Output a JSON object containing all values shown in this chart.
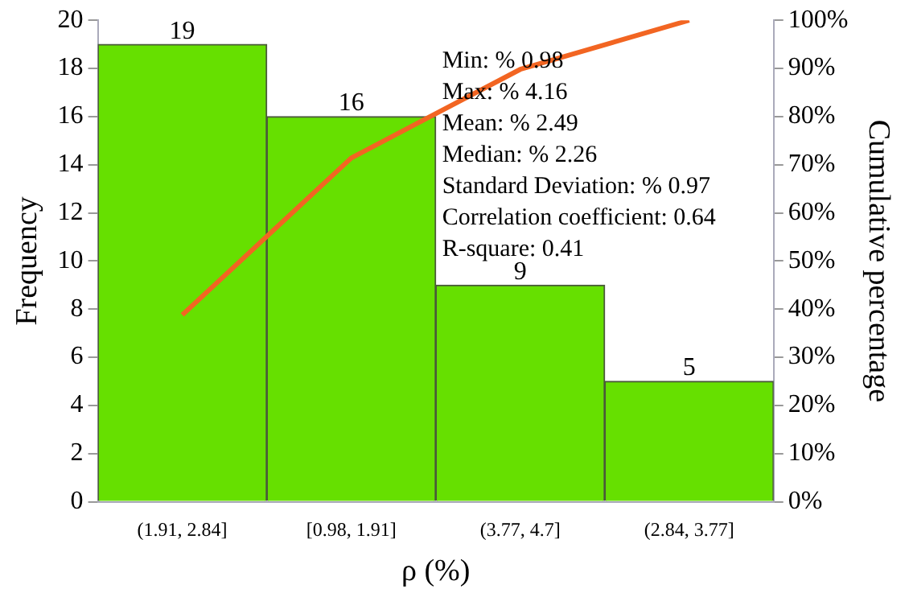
{
  "chart_data": {
    "type": "bar",
    "xlabel": "ρ (%)",
    "ylabel": "Frequency",
    "y2label": "Cumulative percentage",
    "categories": [
      "(1.91, 2.84]",
      "[0.98, 1.91]",
      "(3.77, 4.7]",
      "(2.84, 3.77]"
    ],
    "series": [
      {
        "color": "#66e000",
        "values": [
          19,
          16,
          9,
          5
        ],
        "value_labels": [
          "19",
          "16",
          "9",
          "5"
        ]
      },
      {
        "type": "line",
        "axis": "y2",
        "color": "#f26522",
        "values": [
          38.8,
          71.4,
          89.8,
          100
        ]
      }
    ],
    "ylim": [
      0,
      20
    ],
    "yticks": [
      0,
      2,
      4,
      6,
      8,
      10,
      12,
      14,
      16,
      18,
      20
    ],
    "y2lim": [
      0,
      100
    ],
    "y2ticks": [
      {
        "value": 0,
        "label": "0%"
      },
      {
        "value": 10,
        "label": "10%"
      },
      {
        "value": 20,
        "label": "20%"
      },
      {
        "value": 30,
        "label": "30%"
      },
      {
        "value": 40,
        "label": "40%"
      },
      {
        "value": 50,
        "label": "50%"
      },
      {
        "value": 60,
        "label": "60%"
      },
      {
        "value": 70,
        "label": "70%"
      },
      {
        "value": 80,
        "label": "80%"
      },
      {
        "value": 90,
        "label": "90%"
      },
      {
        "value": 100,
        "label": "100%"
      }
    ],
    "annotations": [
      "Min: % 0.98",
      "Max: % 4.16",
      "Mean: % 2.49",
      "Median: % 2.26",
      "Standard Deviation: % 0.97",
      "Correlation coefficient: 0.64",
      "R-square: 0.41"
    ],
    "grid": false,
    "legend": false,
    "marker": "none",
    "line_style": "solid"
  }
}
